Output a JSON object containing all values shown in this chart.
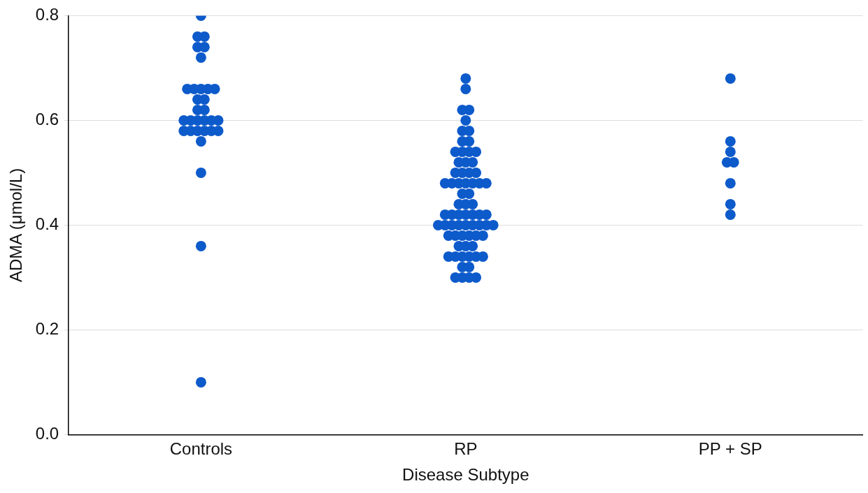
{
  "chart_data": {
    "type": "scatter",
    "xlabel": "Disease Subtype",
    "ylabel": "ADMA (μmol/L)",
    "categories": [
      "Controls",
      "RP",
      "PP + SP"
    ],
    "ylim": [
      0,
      0.8
    ],
    "yticks": [
      {
        "value": 0,
        "label": "0.0"
      },
      0.2,
      0.4,
      0.6,
      0.8
    ],
    "grid": "y",
    "legend": false,
    "marker": "circle",
    "series": [
      {
        "color": "#0d5acb",
        "x": [
          "Controls",
          "Controls",
          "Controls",
          "Controls",
          "Controls",
          "Controls",
          "Controls",
          "Controls",
          "Controls",
          "Controls",
          "Controls",
          "Controls",
          "Controls",
          "Controls",
          "Controls",
          "Controls",
          "Controls",
          "Controls",
          "Controls",
          "Controls",
          "Controls",
          "Controls",
          "Controls",
          "Controls",
          "Controls",
          "Controls",
          "Controls",
          "Controls",
          "Controls",
          "Controls",
          "Controls",
          "RP",
          "RP",
          "RP",
          "RP",
          "RP",
          "RP",
          "RP",
          "RP",
          "RP",
          "RP",
          "RP",
          "RP",
          "RP",
          "RP",
          "RP",
          "RP",
          "RP",
          "RP",
          "RP",
          "RP",
          "RP",
          "RP",
          "RP",
          "RP",
          "RP",
          "RP",
          "RP",
          "RP",
          "RP",
          "RP",
          "RP",
          "RP",
          "RP",
          "RP",
          "RP",
          "RP",
          "RP",
          "RP",
          "RP",
          "RP",
          "RP",
          "RP",
          "RP",
          "RP",
          "RP",
          "RP",
          "RP",
          "RP",
          "RP",
          "RP",
          "RP",
          "RP",
          "RP",
          "RP",
          "RP",
          "RP",
          "RP",
          "RP",
          "RP",
          "RP",
          "RP",
          "RP",
          "RP",
          "RP",
          "RP",
          "RP",
          "RP",
          "RP",
          "RP",
          "PP + SP",
          "PP + SP",
          "PP + SP",
          "PP + SP",
          "PP + SP",
          "PP + SP",
          "PP + SP",
          "PP + SP"
        ],
        "values": [
          0.8,
          0.76,
          0.76,
          0.74,
          0.74,
          0.72,
          0.66,
          0.66,
          0.66,
          0.66,
          0.66,
          0.64,
          0.64,
          0.62,
          0.62,
          0.6,
          0.6,
          0.6,
          0.6,
          0.6,
          0.6,
          0.58,
          0.58,
          0.58,
          0.58,
          0.58,
          0.58,
          0.56,
          0.5,
          0.36,
          0.1,
          0.68,
          0.66,
          0.62,
          0.62,
          0.6,
          0.58,
          0.58,
          0.56,
          0.56,
          0.54,
          0.54,
          0.54,
          0.54,
          0.52,
          0.52,
          0.52,
          0.5,
          0.5,
          0.5,
          0.5,
          0.48,
          0.48,
          0.48,
          0.48,
          0.48,
          0.48,
          0.48,
          0.46,
          0.46,
          0.44,
          0.44,
          0.44,
          0.42,
          0.42,
          0.42,
          0.42,
          0.42,
          0.42,
          0.42,
          0.4,
          0.4,
          0.4,
          0.4,
          0.4,
          0.4,
          0.4,
          0.4,
          0.4,
          0.38,
          0.38,
          0.38,
          0.38,
          0.38,
          0.38,
          0.36,
          0.36,
          0.36,
          0.34,
          0.34,
          0.34,
          0.34,
          0.34,
          0.34,
          0.32,
          0.32,
          0.3,
          0.3,
          0.3,
          0.3,
          0.68,
          0.56,
          0.54,
          0.52,
          0.52,
          0.48,
          0.44,
          0.42
        ]
      }
    ]
  }
}
